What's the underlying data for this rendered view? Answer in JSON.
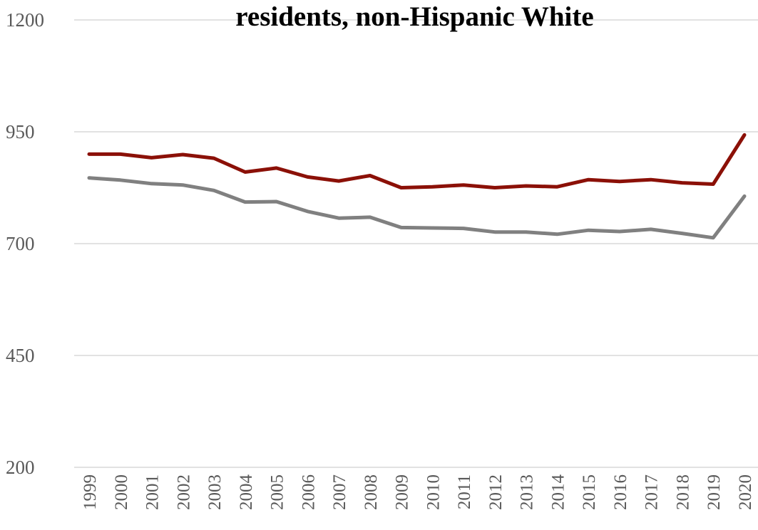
{
  "chart_data": {
    "type": "line",
    "title": "residents, non-Hispanic White",
    "xlabel": "",
    "ylabel": "",
    "ylim": [
      200,
      1200
    ],
    "yticks": [
      200,
      450,
      700,
      950,
      1200
    ],
    "categories": [
      "1999",
      "2000",
      "2001",
      "2002",
      "2003",
      "2004",
      "2005",
      "2006",
      "2007",
      "2008",
      "2009",
      "2010",
      "2011",
      "2012",
      "2013",
      "2014",
      "2015",
      "2016",
      "2017",
      "2018",
      "2019",
      "2020"
    ],
    "grid": true,
    "series": [
      {
        "color": "#8B1007",
        "values": [
          900,
          900,
          892,
          899,
          891,
          860,
          869,
          849,
          840,
          852,
          825,
          827,
          831,
          825,
          829,
          827,
          843,
          839,
          843,
          836,
          833,
          943
        ]
      },
      {
        "color": "#808080",
        "values": [
          847,
          842,
          834,
          831,
          819,
          793,
          794,
          772,
          757,
          759,
          736,
          735,
          734,
          726,
          726,
          721,
          730,
          727,
          732,
          723,
          713,
          806
        ]
      }
    ]
  }
}
